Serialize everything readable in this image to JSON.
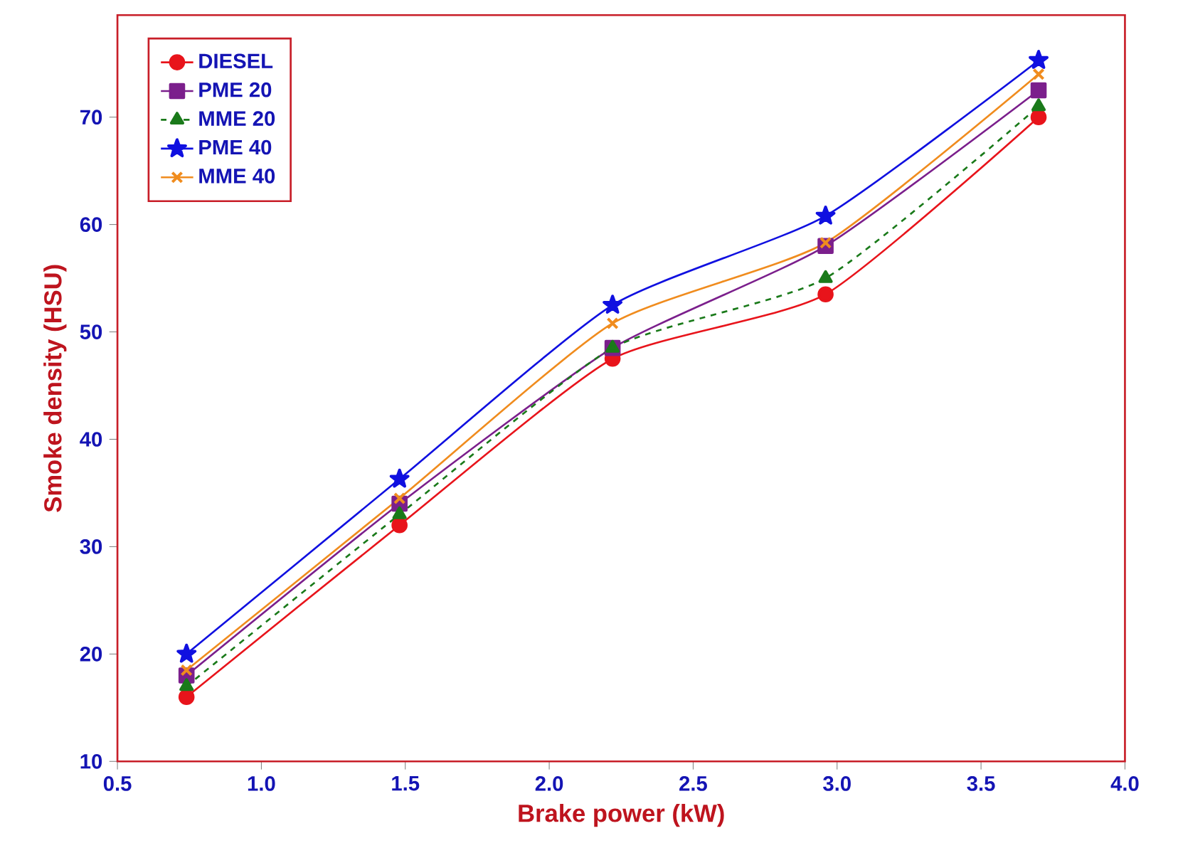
{
  "chart_data": {
    "type": "line",
    "xlabel": "Brake power (kW)",
    "ylabel": "Smoke density (HSU)",
    "x": [
      0.74,
      1.48,
      2.22,
      2.96,
      3.7
    ],
    "series": [
      {
        "name": "DIESEL",
        "color": "#e8141b",
        "marker": "circle",
        "line_style": "solid",
        "values": [
          16,
          32,
          47.5,
          53.5,
          70
        ]
      },
      {
        "name": "PME 20",
        "color": "#7b1f8c",
        "marker": "square",
        "line_style": "solid",
        "values": [
          18,
          34,
          48.5,
          58,
          72.5
        ]
      },
      {
        "name": "MME 20",
        "color": "#1a7a1a",
        "marker": "triangle",
        "line_style": "dashed",
        "values": [
          17,
          33,
          48.5,
          55,
          71
        ]
      },
      {
        "name": "PME 40",
        "color": "#1010e0",
        "marker": "star",
        "line_style": "solid",
        "values": [
          20,
          36.3,
          52.5,
          60.8,
          75.3
        ]
      },
      {
        "name": "MME 40",
        "color": "#f08c1e",
        "marker": "cross",
        "line_style": "solid",
        "values": [
          18.5,
          34.5,
          50.8,
          58.3,
          74
        ]
      }
    ],
    "xlim": [
      0.5,
      4.0
    ],
    "ylim": [
      10,
      79.5
    ],
    "xticks": [
      {
        "value": 0.5,
        "label": "0.5"
      },
      {
        "value": 1.0,
        "label": "1.0"
      },
      {
        "value": 1.5,
        "label": "1.5"
      },
      {
        "value": 2.0,
        "label": "2.0"
      },
      {
        "value": 2.5,
        "label": "2.5"
      },
      {
        "value": 3.0,
        "label": "3.0"
      },
      {
        "value": 3.5,
        "label": "3.5"
      },
      {
        "value": 4.0,
        "label": "4.0"
      }
    ],
    "yticks": [
      10,
      20,
      30,
      40,
      50,
      60,
      70
    ],
    "grid": false,
    "legend": "top left"
  }
}
